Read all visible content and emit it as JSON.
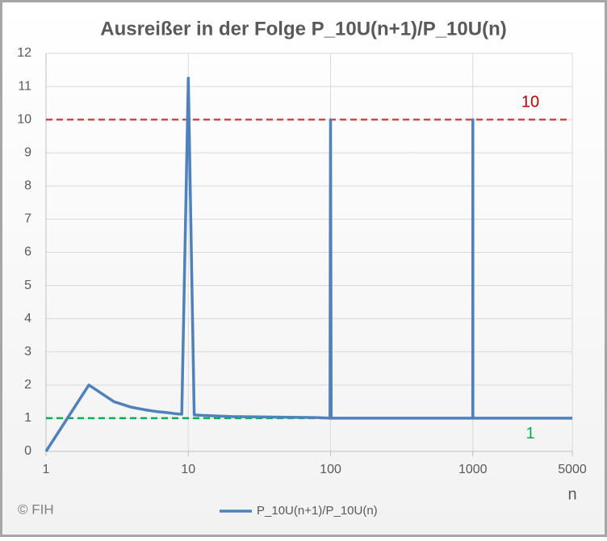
{
  "chart_data": {
    "type": "line",
    "title": "Ausreißer in der Folge P_10U(n+1)/P_10U(n)",
    "x_label": "n",
    "credit": "© FIH",
    "x_log": true,
    "grid": true,
    "legend": "bottom",
    "xlim": [
      1,
      5000
    ],
    "xticks": [
      1,
      10,
      100,
      1000,
      5000
    ],
    "ylim": [
      0,
      12
    ],
    "yticks": [
      0,
      1,
      2,
      3,
      4,
      5,
      6,
      7,
      8,
      9,
      10,
      11,
      12
    ],
    "series": [
      {
        "name": "P_10U(n+1)/P_10U(n)",
        "color": "#4f81bd",
        "x": [
          1,
          2,
          3,
          4,
          5,
          6,
          7,
          8,
          9,
          10,
          11,
          12,
          15,
          20,
          30,
          50,
          80,
          99,
          100,
          101,
          200,
          500,
          999,
          1000,
          1001,
          5000
        ],
        "values": [
          0,
          2,
          1.5,
          1.33,
          1.25,
          1.2,
          1.17,
          1.14,
          1.12,
          11.25,
          1.1,
          1.09,
          1.07,
          1.05,
          1.04,
          1.03,
          1.02,
          1.0,
          10,
          1.0,
          1.0,
          1.0,
          1.0,
          10,
          1.0,
          1.0
        ]
      }
    ],
    "reference_lines": [
      {
        "value": 10,
        "color": "#c0504d"
      },
      {
        "value": 1,
        "color": "#00b050"
      }
    ]
  }
}
